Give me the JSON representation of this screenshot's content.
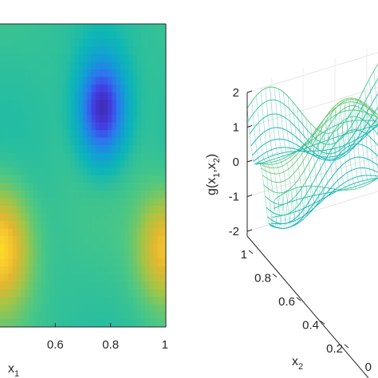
{
  "chart_data": [
    {
      "type": "heatmap",
      "title": "",
      "xlabel": "x",
      "xlabel_sub": "1",
      "xlim": [
        0.4,
        1.0
      ],
      "ylim": [
        0,
        1
      ],
      "x_ticks": [
        {
          "value": 0.6,
          "label": "0.6"
        },
        {
          "value": 0.8,
          "label": "0.8"
        },
        {
          "value": 1.0,
          "label": "1"
        }
      ],
      "colormap": "parula",
      "color_range": [
        -2,
        2
      ],
      "grid": false
    },
    {
      "type": "surface",
      "title": "",
      "zlabel": "g(x",
      "zlabel_sub1": "1",
      "zlabel_mid": ",x",
      "zlabel_sub2": "2",
      "zlabel_end": ")",
      "ylabel": "x",
      "ylabel_sub": "2",
      "zlim": [
        -2,
        2
      ],
      "z_ticks": [
        {
          "value": 2,
          "label": "2"
        },
        {
          "value": 1,
          "label": "1"
        },
        {
          "value": 0,
          "label": "0"
        },
        {
          "value": -1,
          "label": "-1"
        },
        {
          "value": -2,
          "label": "-2"
        }
      ],
      "y_ticks": [
        {
          "value": 1.0,
          "label": "1"
        },
        {
          "value": 0.8,
          "label": "0.8"
        },
        {
          "value": 0.6,
          "label": "0.6"
        },
        {
          "value": 0.4,
          "label": "0.4"
        },
        {
          "value": 0.2,
          "label": "0.2"
        }
      ],
      "x_ticks_visible": [
        {
          "value": 0,
          "label": "0"
        }
      ],
      "colormap": "parula",
      "grid": true
    }
  ]
}
